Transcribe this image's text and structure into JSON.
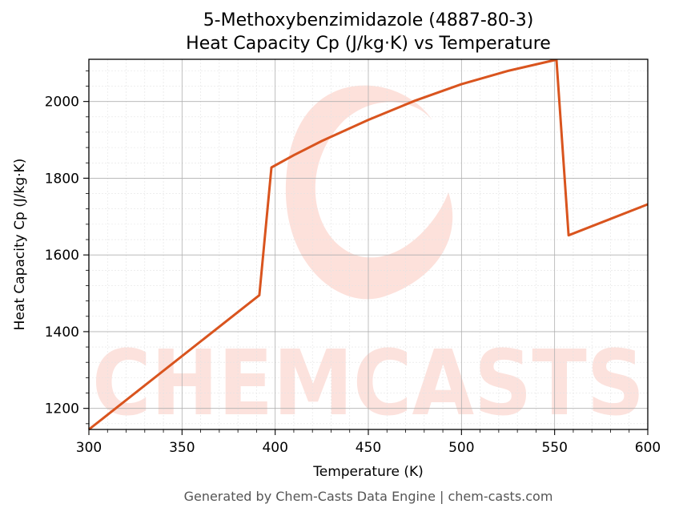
{
  "chart_data": {
    "type": "line",
    "title": "5-Methoxybenzimidazole (4887-80-3)",
    "subtitle": "Heat Capacity Cp (J/kg·K) vs Temperature",
    "xlabel": "Temperature (K)",
    "ylabel": "Heat Capacity Cp (J/kg·K)",
    "xlim": [
      300,
      600
    ],
    "ylim": [
      1145,
      2110
    ],
    "xticks": [
      300,
      350,
      400,
      450,
      500,
      550,
      600
    ],
    "yticks": [
      1200,
      1400,
      1600,
      1800,
      2000
    ],
    "grid": true,
    "legend": "none",
    "series": [
      {
        "color": "#d9541e",
        "x": [
          300,
          391.5,
          398,
          410,
          425,
          450,
          475,
          500,
          525,
          550,
          551,
          557.5,
          600
        ],
        "y": [
          1145,
          1495,
          1828,
          1860,
          1897,
          1952,
          2002,
          2045,
          2080,
          2108,
          2108,
          1651,
          1732
        ]
      }
    ]
  },
  "watermark": {
    "text": "CHEMCASTS",
    "color": "#fcd9d2"
  },
  "footer": {
    "text": "Generated by Chem-Casts Data Engine | chem-casts.com"
  }
}
